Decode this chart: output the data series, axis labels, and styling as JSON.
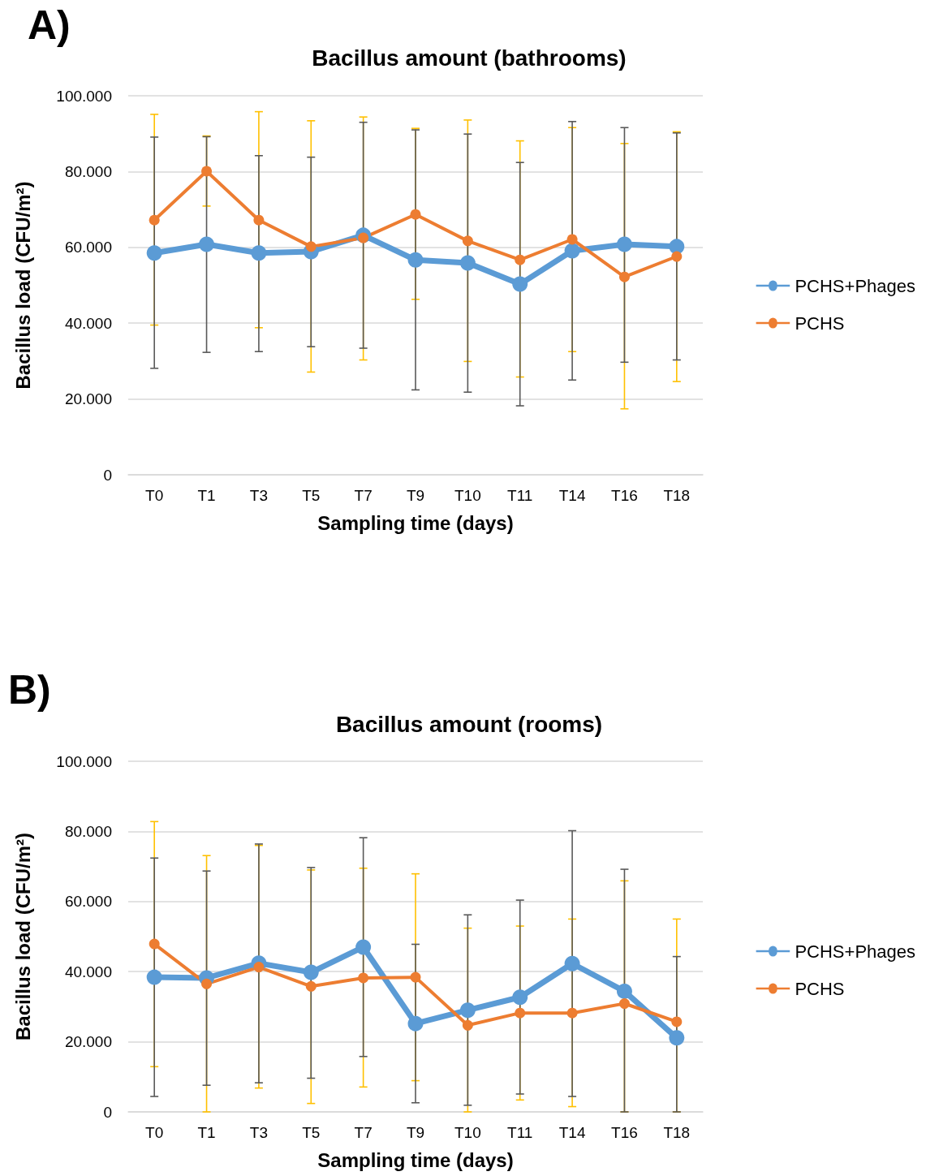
{
  "chart_data": [
    {
      "type": "line",
      "title": "Bacillus amount (bathrooms)",
      "xlabel": "Sampling time (days)",
      "ylabel": "Bacillus load (CFU/m²)",
      "annotations": [
        "A)"
      ],
      "categories": [
        "T0",
        "T1",
        "T3",
        "T5",
        "T7",
        "T9",
        "T10",
        "T11",
        "T14",
        "T16",
        "T18"
      ],
      "ylim": [
        0,
        100000
      ],
      "yticks": [
        0,
        {
          "value": 20000,
          "label": "20.000"
        },
        {
          "value": 40000,
          "label": "40.000"
        },
        {
          "value": 60000,
          "label": "60.000"
        },
        {
          "value": 80000,
          "label": "80.000"
        },
        {
          "value": 100000,
          "label": "100.000"
        }
      ],
      "grid": "y",
      "legend": "right",
      "marker": "circle",
      "line_style": "solid",
      "series": [
        {
          "name": "PCHS+Phages",
          "color": "#5b9bd5",
          "values": [
            58500,
            60800,
            58500,
            58900,
            63200,
            56700,
            55900,
            50300,
            59100,
            60800,
            60200
          ],
          "errors": [
            [
              28100,
              89100
            ],
            [
              32300,
              89200
            ],
            [
              32500,
              84200
            ],
            [
              33800,
              83800
            ],
            [
              33400,
              93000
            ],
            [
              22400,
              91000
            ],
            [
              21800,
              89900
            ],
            [
              18200,
              82400
            ],
            [
              25000,
              93200
            ],
            [
              29700,
              91600
            ],
            [
              30300,
              90200
            ]
          ]
        },
        {
          "name": "PCHS",
          "color": "#ed7d31",
          "values": [
            67200,
            80100,
            67200,
            60200,
            62500,
            68700,
            61700,
            56700,
            62100,
            52200,
            57600
          ],
          "errors": [
            [
              39500,
              95100
            ],
            [
              70900,
              89400
            ],
            [
              38800,
              95800
            ],
            [
              27100,
              93400
            ],
            [
              30300,
              94400
            ],
            [
              46300,
              91400
            ],
            [
              29900,
              93600
            ],
            [
              25800,
              88100
            ],
            [
              32500,
              91600
            ],
            [
              17400,
              87400
            ],
            [
              24600,
              90500
            ]
          ]
        }
      ]
    },
    {
      "type": "line",
      "title": "Bacillus amount (rooms)",
      "xlabel": "Sampling time (days)",
      "ylabel": "Bacillus load (CFU/m²)",
      "annotations": [
        "B)"
      ],
      "categories": [
        "T0",
        "T1",
        "T3",
        "T5",
        "T7",
        "T9",
        "T10",
        "T11",
        "T14",
        "T16",
        "T18"
      ],
      "ylim": [
        0,
        100000
      ],
      "yticks": [
        0,
        {
          "value": 20000,
          "label": "20.000"
        },
        {
          "value": 40000,
          "label": "40.000"
        },
        {
          "value": 60000,
          "label": "60.000"
        },
        {
          "value": 80000,
          "label": "80.000"
        },
        {
          "value": 100000,
          "label": "100.000"
        }
      ],
      "grid": "y",
      "legend": "right",
      "marker": "circle",
      "line_style": "solid",
      "series": [
        {
          "name": "PCHS+Phages",
          "color": "#5b9bd5",
          "values": [
            38400,
            38200,
            42400,
            39800,
            47000,
            25200,
            29000,
            32700,
            42300,
            34400,
            21100
          ],
          "errors": [
            [
              4400,
              72400
            ],
            [
              7600,
              68700
            ],
            [
              8300,
              76400
            ],
            [
              9600,
              69700
            ],
            [
              15800,
              78200
            ],
            [
              2600,
              47800
            ],
            [
              1900,
              56200
            ],
            [
              5100,
              60400
            ],
            [
              4400,
              80200
            ],
            [
              0,
              69200
            ],
            [
              0,
              44300
            ]
          ]
        },
        {
          "name": "PCHS",
          "color": "#ed7d31",
          "values": [
            47900,
            36500,
            41300,
            35800,
            38200,
            38400,
            24700,
            28200,
            28200,
            30900,
            25700
          ],
          "errors": [
            [
              12900,
              82800
            ],
            [
              0,
              73100
            ],
            [
              6800,
              76000
            ],
            [
              2400,
              69000
            ],
            [
              7100,
              69500
            ],
            [
              8900,
              67900
            ],
            [
              0,
              52400
            ],
            [
              3400,
              53000
            ],
            [
              1500,
              55000
            ],
            [
              0,
              65900
            ],
            [
              0,
              55000
            ]
          ]
        }
      ]
    }
  ]
}
